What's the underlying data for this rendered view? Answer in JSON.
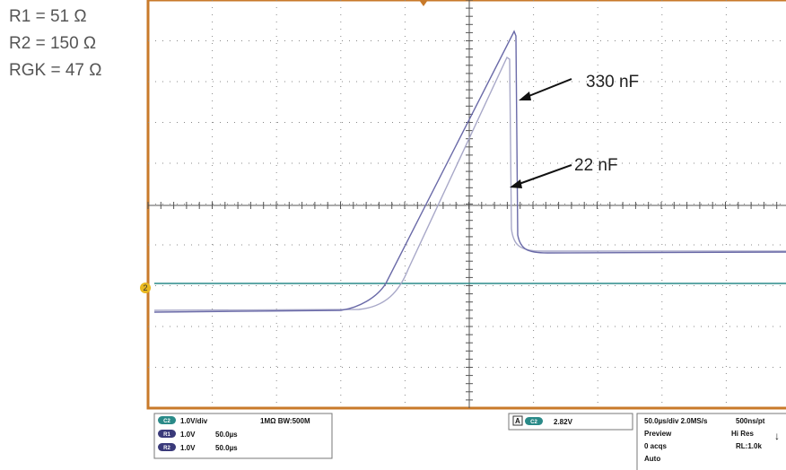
{
  "labels": [
    "R1 = 51 Ω",
    "R2 = 150 Ω",
    "RGK = 47 Ω"
  ],
  "annotations": {
    "cap_330": "330 nF",
    "cap_22": "22 nF"
  },
  "marker": "2",
  "status": {
    "channels": [
      {
        "badge": "C2",
        "scale": "1.0V/div",
        "extra": "1MΩ BW:500M"
      },
      {
        "badge": "R1",
        "scale": "1.0V",
        "extra": "50.0µs"
      },
      {
        "badge": "R2",
        "scale": "1.0V",
        "extra": "50.0µs"
      }
    ],
    "trigger": {
      "badge_a": "A",
      "badge_c": "C2",
      "level": "2.82V"
    },
    "acquisition": [
      [
        "50.0µs/div 2.0MS/s",
        "500ns/pt"
      ],
      [
        "Preview",
        "Hi Res"
      ],
      [
        "0 acqs",
        "RL:1.0k"
      ],
      [
        "Auto",
        ""
      ]
    ]
  }
}
